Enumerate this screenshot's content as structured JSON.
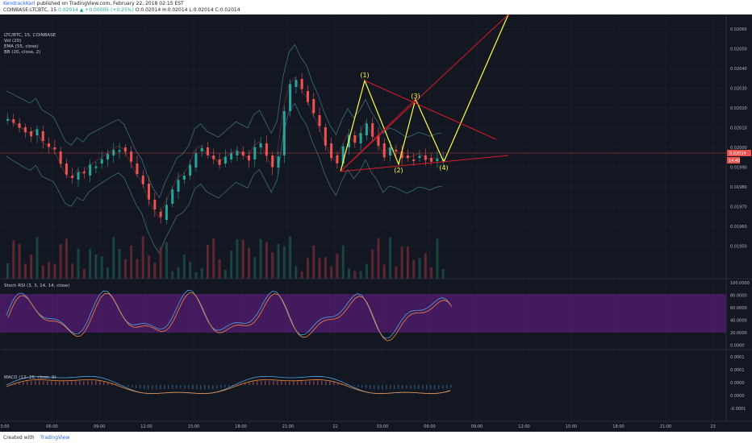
{
  "header": {
    "author": "KendrackKarl",
    "published": "published on TradingView.com, February 22, 2018 02:15 EST",
    "symbol": "COINBASE:LTCBTC, 15",
    "price": "0.02014",
    "change": "▲ +0.00005 (+0.25%)",
    "ohlc_o": "O:0.02014",
    "ohlc_h": "H:0.02014",
    "ohlc_l": "L:0.02014",
    "ohlc_c": "C:0.02014"
  },
  "legend": {
    "title": "LTC/BTC, 15, COINBASE",
    "vol": "Vol (20)",
    "ema": "EMA (55, close)",
    "bb": "BB (20, close, 2)"
  },
  "panels": {
    "stoch": "Stoch RSI (3, 3, 14, 14, close)",
    "macd": "MACD (12, 26, close, 9)"
  },
  "price_axis": [
    "0.02060",
    "0.02050",
    "0.02040",
    "0.02030",
    "0.02020",
    "0.02010",
    "0.02000",
    "0.01990",
    "0.01980",
    "0.01970",
    "0.01960",
    "0.01950"
  ],
  "stoch_axis": [
    "100.0000",
    "80.0000",
    "60.0000",
    "40.0000",
    "20.0000",
    "0.0000"
  ],
  "macd_axis": [
    "0.0001",
    "0.0001",
    "0.0000",
    "0.0000",
    "-0.0001"
  ],
  "current_price_tag": "0.02014",
  "time_tag": "14:40",
  "time_axis": [
    "3:00",
    "06:00",
    "09:00",
    "12:00",
    "15:00",
    "18:00",
    "21:00",
    "22",
    "03:00",
    "06:00",
    "09:00",
    "12:00",
    "15:00",
    "18:00",
    "21:00",
    "23"
  ],
  "wave_labels": [
    "(1)",
    "(2)",
    "(3)",
    "(4)"
  ],
  "colors": {
    "bg": "#131722",
    "up": "#26a69a",
    "down": "#ef5350",
    "yellow": "#ffff3c",
    "red": "#d81b2b",
    "purple": "#7e1fa7"
  },
  "footer": {
    "created": "Created with",
    "brand": "TradingView"
  }
}
